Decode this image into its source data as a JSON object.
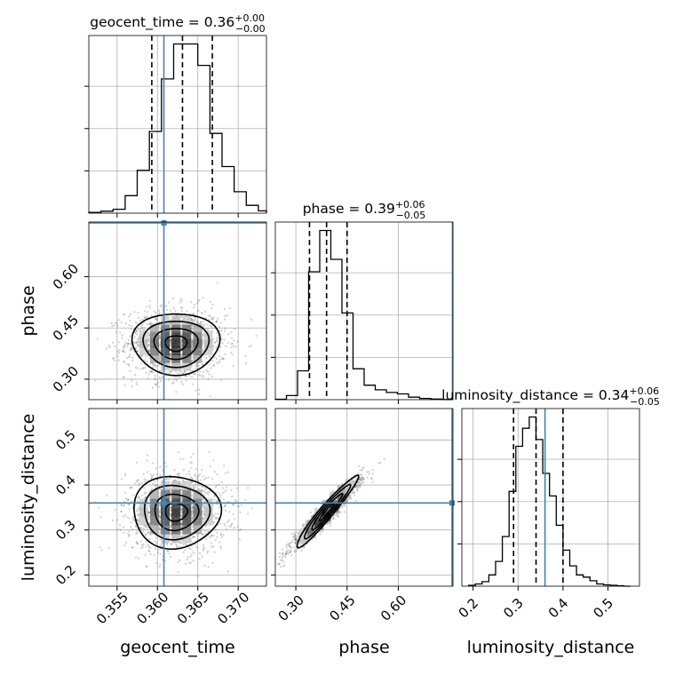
{
  "chart_data": {
    "type": "corner",
    "parameters": [
      {
        "key": "geocent_time",
        "label": "geocent_time",
        "title": "geocent_time = 0.36",
        "title_sup": "+0.00",
        "title_sub": "−0.00",
        "lim": [
          0.3515,
          0.3735
        ],
        "ticks": [
          0.355,
          0.36,
          0.365,
          0.37
        ],
        "tick_labels": [
          "0.355",
          "0.360",
          "0.365",
          "0.370"
        ],
        "truth": 0.3608,
        "quantiles": [
          0.3593,
          0.3631,
          0.3668
        ],
        "hist_edges": [
          0.3515,
          0.353,
          0.3545,
          0.356,
          0.3575,
          0.359,
          0.3605,
          0.362,
          0.3635,
          0.365,
          0.3665,
          0.368,
          0.3695,
          0.371,
          0.3725,
          0.374
        ],
        "hist_counts": [
          2,
          5,
          10,
          45,
          110,
          210,
          345,
          435,
          435,
          380,
          205,
          120,
          55,
          20,
          6
        ]
      },
      {
        "key": "phase",
        "label": "phase",
        "title": "phase = 0.39",
        "title_sup": "+0.06",
        "title_sub": "−0.05",
        "lim": [
          0.24,
          0.76
        ],
        "ticks": [
          0.3,
          0.45,
          0.6
        ],
        "tick_labels": [
          "0.30",
          "0.45",
          "0.60"
        ],
        "truth": 0.76,
        "quantiles": [
          0.34,
          0.39,
          0.45
        ],
        "hist_edges": [
          0.24,
          0.2725,
          0.305,
          0.3375,
          0.37,
          0.4025,
          0.435,
          0.4675,
          0.5,
          0.5325,
          0.565,
          0.5975,
          0.63,
          0.6625,
          0.695,
          0.7275,
          0.76
        ],
        "hist_counts": [
          2,
          20,
          140,
          620,
          820,
          680,
          420,
          150,
          70,
          48,
          35,
          28,
          12,
          6,
          3,
          1
        ]
      },
      {
        "key": "luminosity_distance",
        "label": "luminosity_distance",
        "title": "luminosity_distance = 0.34",
        "title_sup": "+0.06",
        "title_sub": "−0.05",
        "lim": [
          0.175,
          0.57
        ],
        "ticks": [
          0.2,
          0.3,
          0.4,
          0.5
        ],
        "tick_labels": [
          "0.2",
          "0.3",
          "0.4",
          "0.5"
        ],
        "truth": 0.36,
        "quantiles": [
          0.29,
          0.34,
          0.4
        ],
        "hist_edges": [
          0.19,
          0.205,
          0.22,
          0.235,
          0.25,
          0.265,
          0.28,
          0.295,
          0.31,
          0.325,
          0.34,
          0.355,
          0.37,
          0.385,
          0.4,
          0.415,
          0.43,
          0.445,
          0.46,
          0.475,
          0.49,
          0.505,
          0.52,
          0.535,
          0.55
        ],
        "hist_counts": [
          2,
          5,
          10,
          25,
          55,
          110,
          210,
          310,
          350,
          375,
          325,
          250,
          200,
          135,
          80,
          45,
          25,
          20,
          12,
          5,
          3,
          2,
          1,
          0
        ]
      }
    ],
    "truth_color": "#4682b4",
    "grid": true,
    "pairs": [
      {
        "x": "geocent_time",
        "y": "phase",
        "center": [
          0.3623,
          0.405
        ],
        "spread": [
          0.0027,
          0.045
        ],
        "rho": 0.0,
        "n_points": 1400
      },
      {
        "x": "geocent_time",
        "y": "luminosity_distance",
        "center": [
          0.3623,
          0.34
        ],
        "spread": [
          0.0027,
          0.04
        ],
        "rho": 0.0,
        "n_points": 1400
      },
      {
        "x": "phase",
        "y": "luminosity_distance",
        "center": [
          0.39,
          0.34
        ],
        "spread": [
          0.045,
          0.04
        ],
        "rho": 0.96,
        "n_points": 1400
      }
    ]
  }
}
